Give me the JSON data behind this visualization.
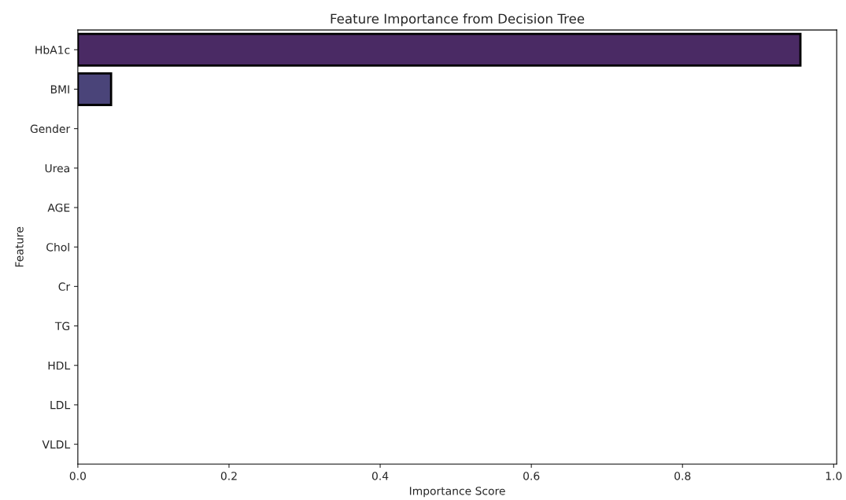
{
  "chart_data": {
    "type": "bar",
    "orientation": "horizontal",
    "title": "Feature Importance from Decision Tree",
    "xlabel": "Importance Score",
    "ylabel": "Feature",
    "categories": [
      "HbA1c",
      "BMI",
      "Gender",
      "Urea",
      "AGE",
      "Chol",
      "Cr",
      "TG",
      "HDL",
      "LDL",
      "VLDL"
    ],
    "values": [
      0.956,
      0.044,
      0,
      0,
      0,
      0,
      0,
      0,
      0,
      0,
      0
    ],
    "colors": [
      "#4a2a64",
      "#4a4479",
      "#3f5a8a",
      "#36708e",
      "#2d838e",
      "#27968b",
      "#29a97f",
      "#44bb6e",
      "#6dcb57",
      "#a2d83a",
      "#d8e128"
    ],
    "xlim": [
      0,
      1.004
    ],
    "xticks": [
      {
        "value": 0,
        "label": "0.0"
      },
      0.2,
      0.4,
      0.6,
      0.8,
      {
        "value": 1,
        "label": "1.0"
      }
    ],
    "grid": false
  }
}
